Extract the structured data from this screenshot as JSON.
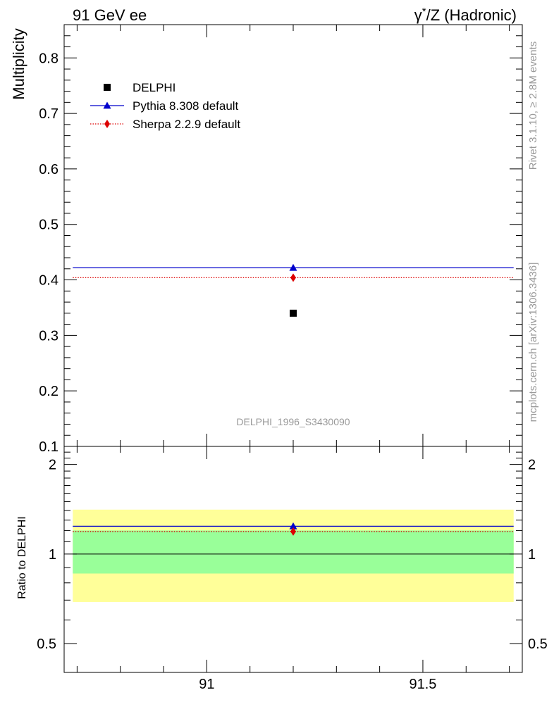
{
  "header": {
    "left_title": "91 GeV ee",
    "right_title_prefix": "γ",
    "right_title_sup": "*",
    "right_title_suffix": "/Z (Hadronic)"
  },
  "side_labels": {
    "rivet": "Rivet 3.1.10, ≥ 2.8M events",
    "mcplots": "mcplots.cern.ch [arXiv:1306.3436]"
  },
  "watermark": "DELPHI_1996_S3430090",
  "colors": {
    "data": "#000000",
    "pythia": "#0000cc",
    "sherpa": "#dd0000",
    "band_inner": "#99ff99",
    "band_outer": "#ffff99",
    "side_text": "#999999"
  },
  "chart_data": [
    {
      "type": "scatter",
      "panel": "main",
      "ylabel": "Multiplicity",
      "xlim": [
        90.67,
        91.73
      ],
      "ylim": [
        0.1,
        0.86
      ],
      "xticks": [
        91,
        91.5
      ],
      "yticks": [
        {
          "value": 0.1,
          "label": "0.1"
        },
        {
          "value": 0.2,
          "label": "0.2"
        },
        {
          "value": 0.3,
          "label": "0.3"
        },
        {
          "value": 0.4,
          "label": "0.4"
        },
        {
          "value": 0.5,
          "label": "0.5"
        },
        {
          "value": 0.6,
          "label": "0.6"
        },
        {
          "value": 0.7,
          "label": "0.7"
        },
        {
          "value": 0.8,
          "label": "0.8"
        }
      ],
      "legend_position": "top-left",
      "series": [
        {
          "name": "DELPHI",
          "marker": "square",
          "color": "#000000",
          "points": [
            {
              "x": 91.2,
              "y": 0.34
            }
          ]
        },
        {
          "name": "Pythia 8.308 default",
          "marker": "triangle",
          "line": "solid",
          "color": "#0000cc",
          "xrange": [
            90.69,
            91.71
          ],
          "points": [
            {
              "x": 91.2,
              "y": 0.422
            }
          ]
        },
        {
          "name": "Sherpa 2.2.9 default",
          "marker": "diamond",
          "line": "dotted",
          "color": "#dd0000",
          "xrange": [
            90.69,
            91.71
          ],
          "points": [
            {
              "x": 91.2,
              "y": 0.404
            }
          ]
        }
      ]
    },
    {
      "type": "scatter",
      "panel": "ratio",
      "ylabel": "Ratio to DELPHI",
      "xlim": [
        90.67,
        91.73
      ],
      "ylim": [
        0.4,
        2.3
      ],
      "log_y": true,
      "xticks": [
        {
          "value": 91,
          "label": "91"
        },
        {
          "value": 91.5,
          "label": "91.5"
        }
      ],
      "yticks": [
        {
          "value": 0.5,
          "label": "0.5"
        },
        {
          "value": 1,
          "label": "1"
        },
        {
          "value": 2,
          "label": "2"
        }
      ],
      "reference_line": 1,
      "bands": {
        "xrange": [
          90.69,
          91.71
        ],
        "inner": [
          0.86,
          1.2
        ],
        "outer": [
          0.69,
          1.41
        ]
      },
      "series": [
        {
          "name": "Pythia 8.308 default",
          "color": "#0000cc",
          "marker": "triangle",
          "points": [
            {
              "x": 91.2,
              "y": 1.24
            }
          ]
        },
        {
          "name": "Sherpa 2.2.9 default",
          "color": "#dd0000",
          "marker": "diamond",
          "points": [
            {
              "x": 91.2,
              "y": 1.19
            }
          ]
        }
      ]
    }
  ]
}
